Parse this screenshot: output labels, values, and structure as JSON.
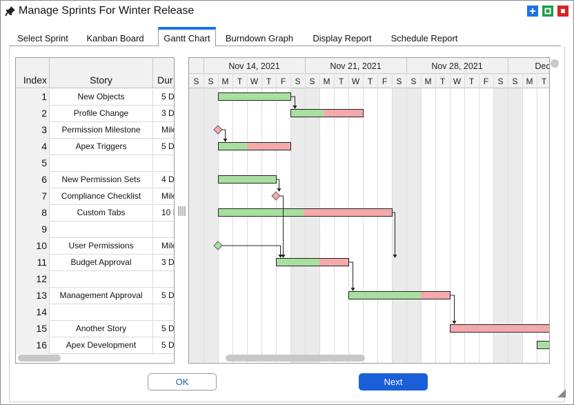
{
  "window": {
    "title": "Manage Sprints For Winter Release",
    "controls": {
      "maximize_color": "#1a73e8",
      "restore_color": "#1e9e4a",
      "close_color": "#e02020"
    }
  },
  "tabs": [
    {
      "label": "Select Sprint",
      "active": false
    },
    {
      "label": "Kanban Board",
      "active": false
    },
    {
      "label": "Gantt Chart",
      "active": true
    },
    {
      "label": "Burndown Graph",
      "active": false
    },
    {
      "label": "Display Report",
      "active": false
    },
    {
      "label": "Schedule Report",
      "active": false
    }
  ],
  "grid": {
    "headers": {
      "index": "Index",
      "story": "Story",
      "duration": "Dur"
    },
    "rows": [
      {
        "index": "1",
        "story": "New Objects",
        "duration": "5 D"
      },
      {
        "index": "2",
        "story": "Profile Change",
        "duration": "3 D"
      },
      {
        "index": "3",
        "story": "Permission Milestone",
        "duration": "Miles"
      },
      {
        "index": "4",
        "story": "Apex Triggers",
        "duration": "5 D"
      },
      {
        "index": "5",
        "story": "",
        "duration": ""
      },
      {
        "index": "6",
        "story": "New Permission Sets",
        "duration": "4 D"
      },
      {
        "index": "7",
        "story": "Compliance Checklist",
        "duration": "Miles"
      },
      {
        "index": "8",
        "story": "Custom Tabs",
        "duration": "10 I"
      },
      {
        "index": "9",
        "story": "",
        "duration": ""
      },
      {
        "index": "10",
        "story": "User Permissions",
        "duration": "Miles"
      },
      {
        "index": "11",
        "story": "Budget Approval",
        "duration": "3 D"
      },
      {
        "index": "12",
        "story": "",
        "duration": ""
      },
      {
        "index": "13",
        "story": "Management Approval",
        "duration": "5 D"
      },
      {
        "index": "14",
        "story": "",
        "duration": ""
      },
      {
        "index": "15",
        "story": "Another Story",
        "duration": "5 D"
      },
      {
        "index": "16",
        "story": "Apex Development",
        "duration": "5 D"
      }
    ]
  },
  "gantt": {
    "week_labels": [
      "Nov 14, 2021",
      "Nov 21, 2021",
      "Nov 28, 2021",
      "Dec"
    ],
    "day_letters": [
      "S",
      "S",
      "M",
      "T",
      "W",
      "T",
      "F",
      "S",
      "S",
      "M",
      "T",
      "W",
      "T",
      "F",
      "S",
      "S",
      "M",
      "T",
      "W",
      "T",
      "F",
      "S",
      "S",
      "M",
      "T"
    ],
    "weekend_day_indexes": [
      0,
      1,
      7,
      8,
      14,
      15,
      21,
      22
    ],
    "colors": {
      "done": "#a8e0a0",
      "remaining": "#f4a9ad",
      "milestone_pink": "#f4a9ad",
      "milestone_green": "#a8e0a0",
      "weekend": "#ebebeb"
    },
    "tasks": [
      {
        "row": 1,
        "start": 2,
        "days": 5,
        "done_days": 5
      },
      {
        "row": 2,
        "start": 7,
        "days": 5,
        "done_days": 2.3
      },
      {
        "row": 3,
        "milestone": true,
        "at": 2,
        "color": "pink"
      },
      {
        "row": 4,
        "start": 2,
        "days": 5,
        "done_days": 2
      },
      {
        "row": 6,
        "start": 2,
        "days": 4,
        "done_days": 4
      },
      {
        "row": 7,
        "milestone": true,
        "at": 6,
        "color": "pink"
      },
      {
        "row": 8,
        "start": 2,
        "days": 12,
        "done_days": 5.9
      },
      {
        "row": 10,
        "milestone": true,
        "at": 2,
        "color": "green"
      },
      {
        "row": 11,
        "start": 6,
        "days": 5,
        "done_days": 3
      },
      {
        "row": 13,
        "start": 11,
        "days": 7,
        "done_days": 5
      },
      {
        "row": 15,
        "start": 18,
        "days": 7,
        "done_days": 0
      },
      {
        "row": 16,
        "start": 24,
        "days": 1,
        "done_days": 1
      }
    ],
    "links": [
      [
        1,
        2
      ],
      [
        3,
        4
      ],
      [
        6,
        7
      ],
      [
        7,
        11
      ],
      [
        8,
        11
      ],
      [
        10,
        11
      ],
      [
        11,
        13
      ],
      [
        13,
        15
      ]
    ]
  },
  "buttons": {
    "ok": "OK",
    "next": "Next"
  }
}
